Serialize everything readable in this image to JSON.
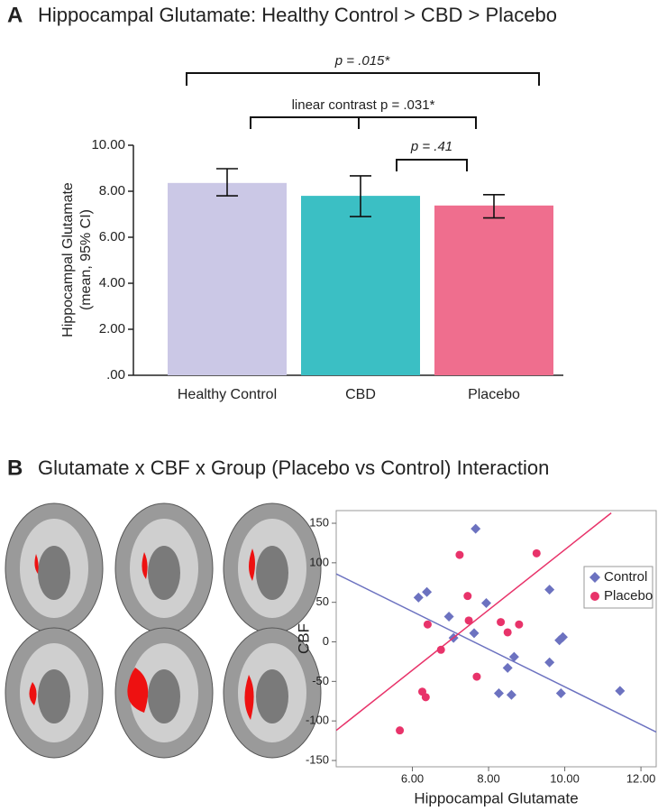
{
  "chart_data": [
    {
      "type": "bar",
      "panel": "A",
      "title": "Hippocampal Glutamate: Healthy Control > CBD > Placebo",
      "ylabel": [
        "Hippocampal Glutamate",
        "(mean, 95% CI)"
      ],
      "categories": [
        "Healthy Control",
        "CBD",
        "Placebo"
      ],
      "values": [
        8.36,
        7.8,
        7.38
      ],
      "error_low": [
        7.8,
        6.9,
        6.84
      ],
      "error_high": [
        8.98,
        8.67,
        7.85
      ],
      "colors": [
        "#cbc8e6",
        "#3bbfc4",
        "#ef6e8e"
      ],
      "ylim": [
        0,
        10
      ],
      "yticks": [
        {
          "value": 0,
          "label": ".00"
        },
        {
          "value": 2,
          "label": "2.00"
        },
        {
          "value": 4,
          "label": "4.00"
        },
        {
          "value": 6,
          "label": "6.00"
        },
        {
          "value": 8,
          "label": "8.00"
        },
        {
          "value": 10,
          "label": "10.00"
        }
      ],
      "annotations": [
        "p = .015*",
        "linear contrast p = .031*",
        "p = .41"
      ]
    },
    {
      "type": "scatter",
      "panel": "B",
      "title": "Glutamate x CBF x Group (Placebo vs Control) Interaction",
      "xlabel": "Hippocampal Glutamate",
      "ylabel": "CBF",
      "xlim": [
        4.0,
        12.4
      ],
      "ylim": [
        -158,
        166
      ],
      "xticks": [
        {
          "value": 6,
          "label": "6.00"
        },
        {
          "value": 8,
          "label": "8.00"
        },
        {
          "value": 10,
          "label": "10.00"
        },
        {
          "value": 12,
          "label": "12.00"
        }
      ],
      "yticks": [
        -150,
        -100,
        -50,
        0,
        50,
        100,
        150
      ],
      "legend": "upper right",
      "series": [
        {
          "name": "Control",
          "color": "#6c72c0",
          "marker": "diamond",
          "x": [
            6.16,
            6.38,
            6.96,
            7.08,
            7.66,
            7.94,
            7.62,
            8.27,
            8.5,
            8.6,
            8.67,
            9.6,
            9.6,
            9.86,
            9.95,
            9.9,
            11.45
          ],
          "y": [
            56,
            63,
            32,
            5,
            143,
            49,
            11,
            -65,
            -33,
            -67,
            -19,
            66,
            -26,
            2,
            6,
            -65,
            -62
          ],
          "fit": {
            "x": [
              4.0,
              12.4
            ],
            "y": [
              86,
              -114
            ]
          }
        },
        {
          "name": "Placebo",
          "color": "#e8336a",
          "marker": "circle",
          "x": [
            5.67,
            6.26,
            6.35,
            6.4,
            6.75,
            7.24,
            7.45,
            7.48,
            7.69,
            8.32,
            8.5,
            8.8,
            9.26
          ],
          "y": [
            -112,
            -63,
            -70,
            22,
            -10,
            110,
            58,
            27,
            -44,
            25,
            12,
            22,
            112
          ],
          "fit": {
            "x": [
              4.0,
              11.22
            ],
            "y": [
              -112,
              163
            ]
          }
        }
      ]
    }
  ]
}
